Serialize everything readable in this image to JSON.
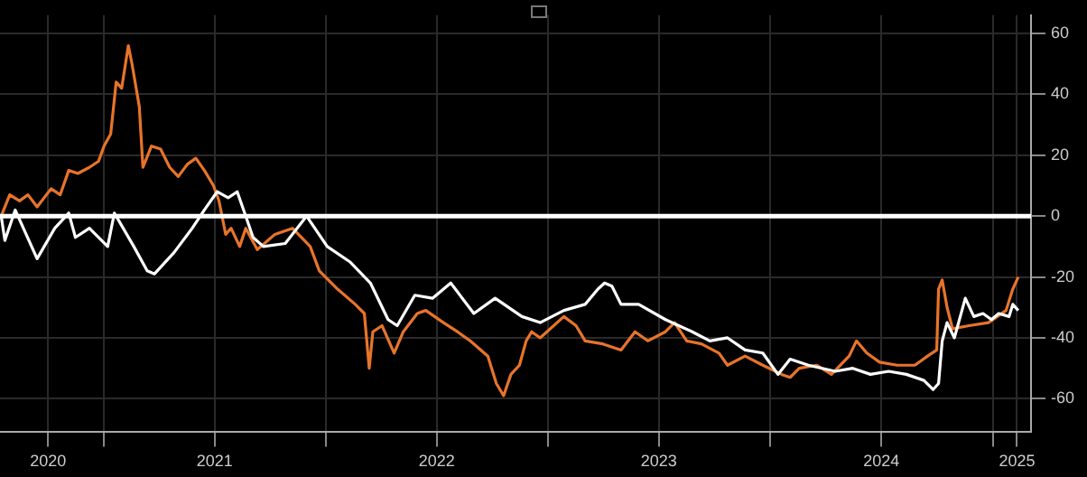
{
  "chart_data": {
    "type": "line",
    "legend": false,
    "grid": true,
    "marker": "none",
    "line_style": "solid",
    "xlim": [
      "2020-07-14",
      "2025-03-05"
    ],
    "ylim": [
      -71,
      66
    ],
    "yticks": [
      -60,
      -40,
      -20,
      0,
      20,
      40,
      60
    ],
    "xticks": [
      {
        "value": "2020-10-01",
        "label": "2020"
      },
      {
        "value": "2021-01-01",
        "label": null
      },
      {
        "value": "2021-07-02",
        "label": "2021"
      },
      {
        "value": "2022-01-01",
        "label": null
      },
      {
        "value": "2022-07-02",
        "label": "2022"
      },
      {
        "value": "2023-01-01",
        "label": null
      },
      {
        "value": "2023-07-02",
        "label": "2023"
      },
      {
        "value": "2024-01-01",
        "label": null
      },
      {
        "value": "2024-07-02",
        "label": "2024"
      },
      {
        "value": "2025-01-01",
        "label": null
      },
      {
        "value": "2025-02-10",
        "label": "2025"
      }
    ],
    "ref_lines": [
      {
        "axis": "y",
        "value": 0,
        "color": "#ffffff"
      }
    ],
    "series": [
      {
        "color": "#ffffff",
        "x": [
          "2020-07-16",
          "2020-07-22",
          "2020-08-08",
          "2020-09-13",
          "2020-10-12",
          "2020-11-04",
          "2020-11-15",
          "2020-12-08",
          "2021-01-07",
          "2021-01-18",
          "2021-02-19",
          "2021-03-13",
          "2021-03-25",
          "2021-04-26",
          "2021-05-26",
          "2021-06-15",
          "2021-07-06",
          "2021-07-24",
          "2021-08-08",
          "2021-08-22",
          "2021-09-03",
          "2021-09-20",
          "2021-10-26",
          "2021-11-30",
          "2022-01-03",
          "2022-02-09",
          "2022-03-15",
          "2022-04-13",
          "2022-04-28",
          "2022-05-27",
          "2022-06-25",
          "2022-07-25",
          "2022-09-01",
          "2022-10-06",
          "2022-11-19",
          "2022-12-19",
          "2023-01-27",
          "2023-03-03",
          "2023-03-24",
          "2023-04-04",
          "2023-04-16",
          "2023-05-01",
          "2023-05-30",
          "2023-07-13",
          "2023-08-26",
          "2023-09-24",
          "2023-10-23",
          "2023-11-21",
          "2023-12-20",
          "2024-01-14",
          "2024-02-03",
          "2024-03-04",
          "2024-04-17",
          "2024-05-16",
          "2024-06-14",
          "2024-07-14",
          "2024-08-12",
          "2024-09-10",
          "2024-09-25",
          "2024-10-04",
          "2024-10-10",
          "2024-10-18",
          "2024-10-30",
          "2024-11-17",
          "2024-12-01",
          "2024-12-16",
          "2024-12-30",
          "2025-01-11",
          "2025-01-28",
          "2025-02-03",
          "2025-02-12"
        ],
        "values": [
          0,
          -8,
          2,
          -14,
          -4,
          1,
          -7,
          -4,
          -10,
          1,
          -10,
          -18,
          -19,
          -12,
          -4,
          2,
          8,
          6,
          8,
          0,
          -7,
          -10,
          -9,
          0,
          -10,
          -15,
          -22,
          -34,
          -36,
          -26,
          -27,
          -22,
          -32,
          -27,
          -33,
          -35,
          -31,
          -29,
          -24,
          -22,
          -23,
          -29,
          -29,
          -34,
          -38,
          -41,
          -40,
          -44,
          -45,
          -52,
          -47,
          -49,
          -51,
          -50,
          -52,
          -51,
          -52,
          -54,
          -57,
          -55,
          -41,
          -35,
          -40,
          -27,
          -33,
          -32,
          -34,
          -32,
          -33,
          -29,
          -31
        ]
      },
      {
        "color": "#e8742a",
        "x": [
          "2020-07-16",
          "2020-07-30",
          "2020-08-15",
          "2020-08-29",
          "2020-09-13",
          "2020-10-06",
          "2020-10-21",
          "2020-11-04",
          "2020-11-19",
          "2020-12-08",
          "2020-12-23",
          "2021-01-01",
          "2021-01-12",
          "2021-01-21",
          "2021-01-30",
          "2021-02-10",
          "2021-02-16",
          "2021-02-28",
          "2021-03-06",
          "2021-03-20",
          "2021-04-04",
          "2021-04-19",
          "2021-05-03",
          "2021-05-18",
          "2021-06-01",
          "2021-06-15",
          "2021-06-30",
          "2021-07-09",
          "2021-07-20",
          "2021-07-29",
          "2021-08-12",
          "2021-08-22",
          "2021-09-10",
          "2021-10-09",
          "2021-11-07",
          "2021-12-06",
          "2021-12-21",
          "2022-01-20",
          "2022-02-18",
          "2022-03-05",
          "2022-03-13",
          "2022-03-19",
          "2022-04-03",
          "2022-04-23",
          "2022-05-08",
          "2022-05-31",
          "2022-06-14",
          "2022-07-13",
          "2022-08-05",
          "2022-08-26",
          "2022-09-24",
          "2022-10-08",
          "2022-10-20",
          "2022-11-01",
          "2022-11-15",
          "2022-11-26",
          "2022-12-05",
          "2022-12-19",
          "2023-01-27",
          "2023-02-16",
          "2023-03-03",
          "2023-04-01",
          "2023-05-01",
          "2023-05-24",
          "2023-06-14",
          "2023-07-13",
          "2023-07-28",
          "2023-08-17",
          "2023-09-10",
          "2023-10-09",
          "2023-10-23",
          "2023-11-21",
          "2023-12-20",
          "2024-01-20",
          "2024-02-03",
          "2024-02-18",
          "2024-03-18",
          "2024-04-11",
          "2024-05-10",
          "2024-05-22",
          "2024-06-08",
          "2024-06-29",
          "2024-07-28",
          "2024-08-26",
          "2024-09-16",
          "2024-10-01",
          "2024-10-04",
          "2024-10-10",
          "2024-10-18",
          "2024-10-27",
          "2024-11-23",
          "2024-12-25",
          "2025-01-23",
          "2025-02-03",
          "2025-02-12"
        ],
        "values": [
          0,
          7,
          5,
          7,
          3,
          9,
          7,
          15,
          14,
          16,
          18,
          23,
          27,
          44,
          42,
          56,
          50,
          36,
          16,
          23,
          22,
          16,
          13,
          17,
          19,
          15,
          10,
          5,
          -6,
          -4,
          -10,
          -4,
          -11,
          -6,
          -4,
          -10,
          -18,
          -24,
          -29,
          -32,
          -50,
          -38,
          -36,
          -45,
          -38,
          -32,
          -31,
          -35,
          -38,
          -41,
          -46,
          -55,
          -59,
          -52,
          -49,
          -41,
          -38,
          -40,
          -33,
          -36,
          -41,
          -42,
          -44,
          -38,
          -41,
          -38,
          -35,
          -41,
          -42,
          -45,
          -49,
          -46,
          -49,
          -52,
          -53,
          -50,
          -49,
          -52,
          -46,
          -41,
          -45,
          -48,
          -49,
          -49,
          -46,
          -44,
          -24,
          -21,
          -30,
          -37,
          -36,
          -35,
          -31,
          -24,
          -20
        ]
      }
    ]
  }
}
